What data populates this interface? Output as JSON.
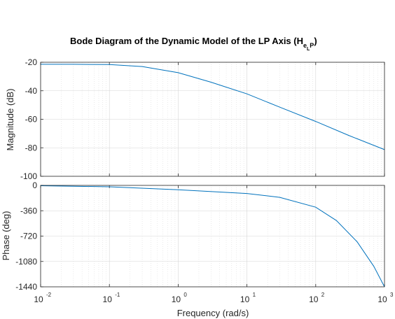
{
  "chart_data": {
    "type": "line",
    "title": "Bode Diagram of the Dynamic Model of the LP Axis (H",
    "title_subscript": "e",
    "title_subsubscript": "L",
    "title_subscript_tail": "P",
    "title_close": ")",
    "xlabel": "Frequency  (rad/s)",
    "xscale": "log",
    "xlim": [
      0.01,
      1000
    ],
    "x_tick_base": "10",
    "x_tick_exponents": [
      "-2",
      "-1",
      "0",
      "1",
      "2",
      "3"
    ],
    "grid": true,
    "color": "#0072bd",
    "panels": [
      {
        "name": "magnitude",
        "ylabel": "Magnitude (dB)",
        "ylim": [
          -100,
          -20
        ],
        "yticks": [
          -20,
          -40,
          -60,
          -80,
          -100
        ],
        "ytick_labels": [
          "-20",
          "-40",
          "-60",
          "-80",
          "-100"
        ],
        "series": [
          {
            "x": [
              0.01,
              0.03,
              0.1,
              0.3,
              1,
              3,
              10,
              30,
              100,
              300,
              1000
            ],
            "y": [
              -21.4,
              -21.4,
              -21.6,
              -23.0,
              -27.3,
              -34.0,
              -42.2,
              -51.5,
              -61.5,
              -71.3,
              -81.3
            ]
          }
        ]
      },
      {
        "name": "phase",
        "ylabel": "Phase (deg)",
        "ylim": [
          -1440,
          0
        ],
        "yticks": [
          0,
          -360,
          -720,
          -1080,
          -1440
        ],
        "ytick_labels": [
          "0",
          "-360",
          "-720",
          "-1080",
          "-1440"
        ],
        "series": [
          {
            "x": [
              0.01,
              0.1,
              1,
              10,
              30,
              100,
              200,
              400,
              700,
              1000
            ],
            "y": [
              -5,
              -20,
              -63,
              -115,
              -170,
              -310,
              -500,
              -800,
              -1150,
              -1440
            ]
          }
        ]
      }
    ]
  }
}
